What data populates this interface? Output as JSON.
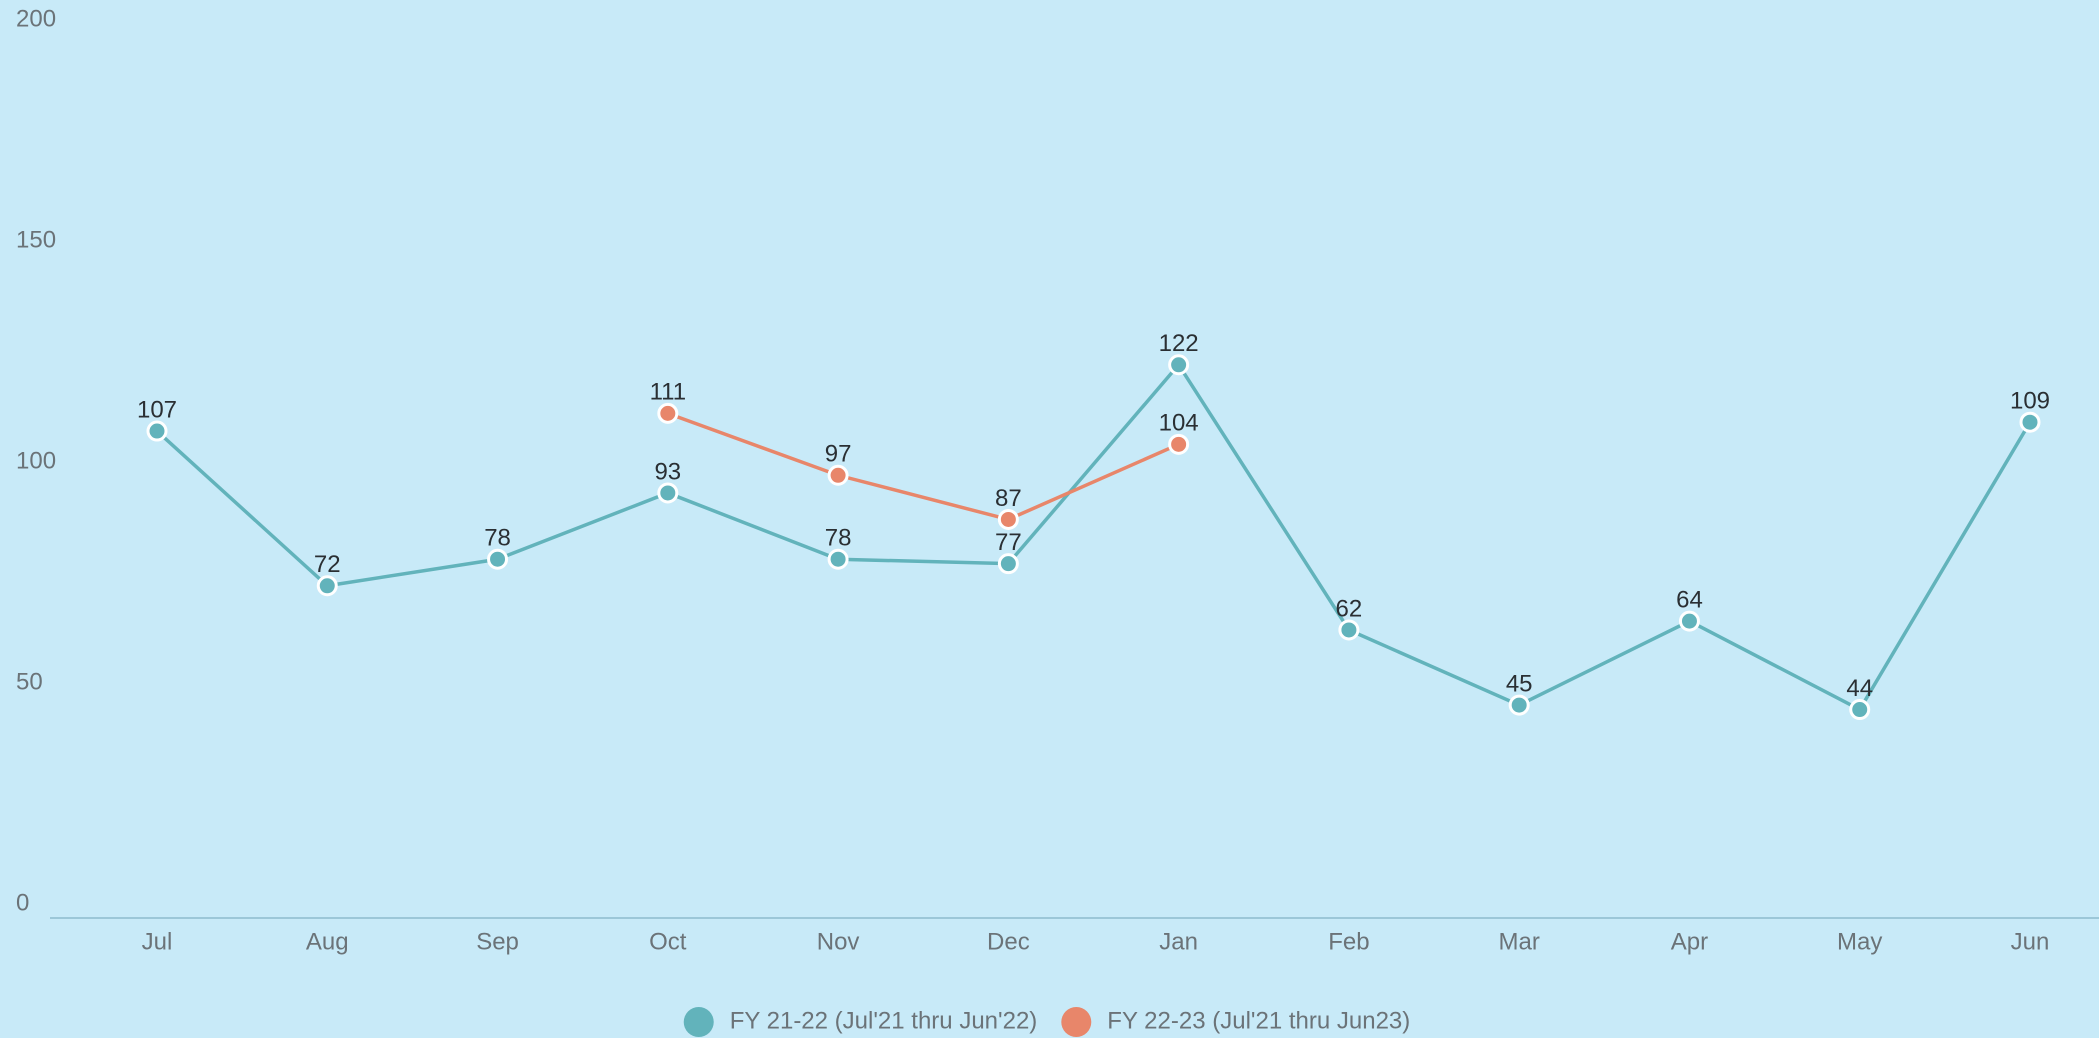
{
  "chart_data": {
    "type": "line",
    "categories": [
      "Jul",
      "Aug",
      "Sep",
      "Oct",
      "Nov",
      "Dec",
      "Jan",
      "Feb",
      "Mar",
      "Apr",
      "May",
      "Jun"
    ],
    "series": [
      {
        "name": "FY 21-22 (Jul'21 thru Jun'22)",
        "color": "#62b3bb",
        "values": [
          107,
          72,
          78,
          93,
          78,
          77,
          122,
          62,
          45,
          64,
          44,
          109
        ]
      },
      {
        "name": "FY 22-23 (Jul'21 thru Jun23)",
        "color": "#e8866a",
        "values": [
          null,
          null,
          null,
          111,
          97,
          87,
          104,
          null,
          null,
          null,
          null,
          null
        ]
      }
    ],
    "ylim": [
      0,
      200
    ],
    "yticks": [
      0,
      50,
      100,
      150,
      200
    ],
    "grid": false,
    "legend": "bottom"
  }
}
